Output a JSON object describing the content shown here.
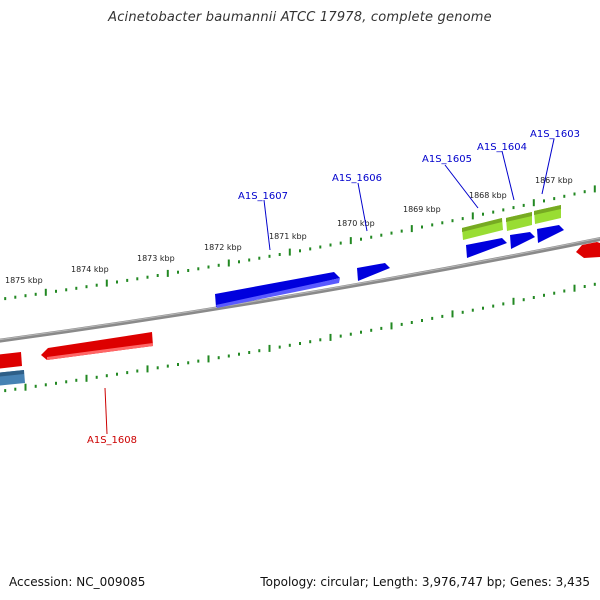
{
  "title": "Acinetobacter baumannii ATCC 17978, complete genome",
  "footer": {
    "accession": "Accession: NC_009085",
    "summary": "Topology: circular; Length: 3,976,747 bp; Genes: 3,435"
  },
  "scale": {
    "tick_labels": [
      "1875 kbp",
      "1874 kbp",
      "1873 kbp",
      "1872 kbp",
      "1871 kbp",
      "1870 kbp",
      "1869 kbp",
      "1868 kbp",
      "1867 kbp"
    ]
  },
  "genes": [
    {
      "name": "A1S_1607",
      "strand": "forward",
      "color": "#0000dd"
    },
    {
      "name": "A1S_1606",
      "strand": "forward",
      "color": "#0000dd"
    },
    {
      "name": "A1S_1605",
      "strand": "forward",
      "color": "#0000dd"
    },
    {
      "name": "A1S_1604",
      "strand": "forward",
      "color": "#0000dd"
    },
    {
      "name": "A1S_1603",
      "strand": "forward",
      "color": "#0000dd"
    },
    {
      "name": "A1S_1608",
      "strand": "reverse",
      "color": "#dd0000"
    }
  ],
  "colors": {
    "backbone": "#808080",
    "ticks": "#228822",
    "cds_forward": "#0000dd",
    "cds_reverse": "#dd0000",
    "rna": "#99dd33",
    "misc": "#4682b4",
    "label_forward": "#0000cc",
    "label_reverse": "#cc0000"
  }
}
